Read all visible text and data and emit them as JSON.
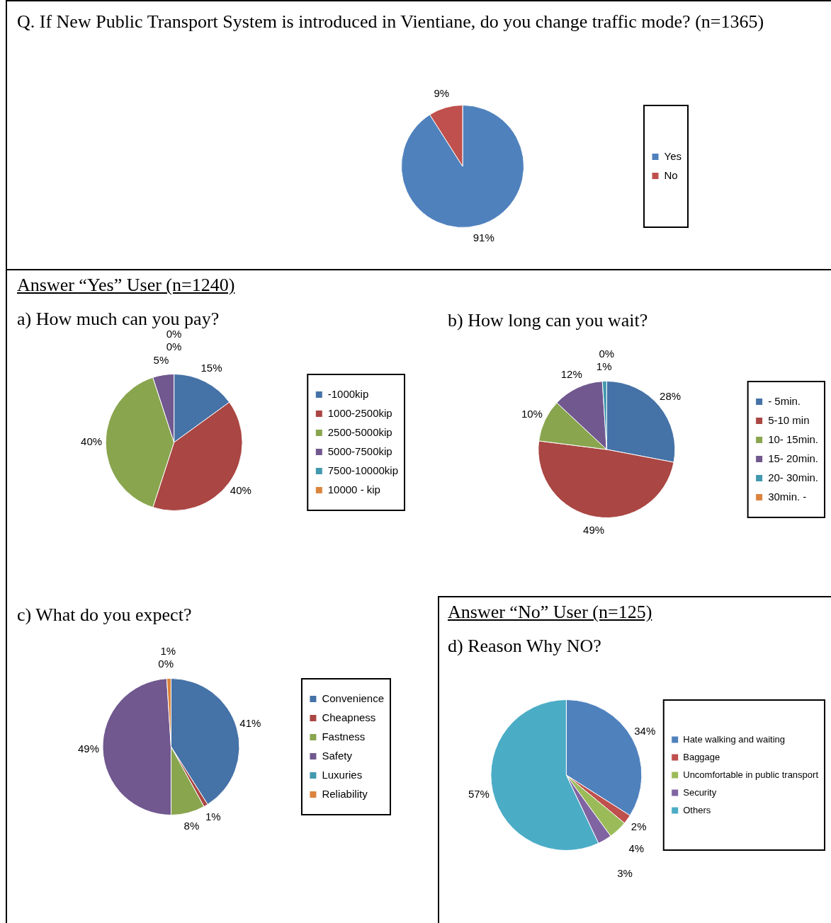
{
  "chart_data": [
    {
      "type": "pie",
      "title": "Q. If New Public Transport System is introduced in Vientiane, do you change traffic mode? (n=1365)",
      "categories": [
        "Yes",
        "No"
      ],
      "values": [
        91,
        9
      ],
      "colors": [
        "#4f81bd",
        "#c0504d"
      ],
      "value_labels": [
        "91%",
        "9%"
      ],
      "legend": "right"
    },
    {
      "type": "pie",
      "subtitle": "Answer “Yes” User (n=1240)",
      "title": "a) How much can you pay?",
      "categories": [
        "-1000kip",
        "1000-2500kip",
        "2500-5000kip",
        "5000-7500kip",
        "7500-10000kip",
        "10000 - kip"
      ],
      "values": [
        15,
        40,
        40,
        5,
        0,
        0
      ],
      "colors": [
        "#4572a7",
        "#aa4643",
        "#89a54e",
        "#71588f",
        "#4198af",
        "#db843d"
      ],
      "value_labels": [
        "15%",
        "40%",
        "40%",
        "5%",
        "0%",
        "0%"
      ],
      "legend": "right"
    },
    {
      "type": "pie",
      "title": "b) How long can you wait?",
      "categories": [
        "- 5min.",
        "5-10 min",
        "10- 15min.",
        "15- 20min.",
        "20- 30min.",
        "30min. -"
      ],
      "values": [
        28,
        49,
        10,
        12,
        1,
        0
      ],
      "colors": [
        "#4572a7",
        "#aa4643",
        "#89a54e",
        "#71588f",
        "#4198af",
        "#db843d"
      ],
      "value_labels": [
        "28%",
        "49%",
        "10%",
        "12%",
        "1%",
        "0%"
      ],
      "legend": "right"
    },
    {
      "type": "pie",
      "title": "c) What do you expect?",
      "categories": [
        "Convenience",
        "Cheapness",
        "Fastness",
        "Safety",
        "Luxuries",
        "Reliability"
      ],
      "values": [
        41,
        1,
        8,
        49,
        0,
        1
      ],
      "colors": [
        "#4572a7",
        "#aa4643",
        "#89a54e",
        "#71588f",
        "#4198af",
        "#db843d"
      ],
      "value_labels": [
        "41%",
        "1%",
        "8%",
        "49%",
        "0%",
        "1%"
      ],
      "legend": "right"
    },
    {
      "type": "pie",
      "subtitle": "Answer “No” User (n=125)",
      "title": "d) Reason Why NO?",
      "categories": [
        "Hate walking and waiting",
        "Baggage",
        "Uncomfortable in public transport",
        "Security",
        "Others"
      ],
      "values": [
        34,
        2,
        4,
        3,
        57
      ],
      "colors": [
        "#4f81bd",
        "#c0504d",
        "#9bbb59",
        "#8064a2",
        "#4bacc6"
      ],
      "value_labels": [
        "34%",
        "2%",
        "4%",
        "3%",
        "57%"
      ],
      "legend": "right"
    }
  ]
}
